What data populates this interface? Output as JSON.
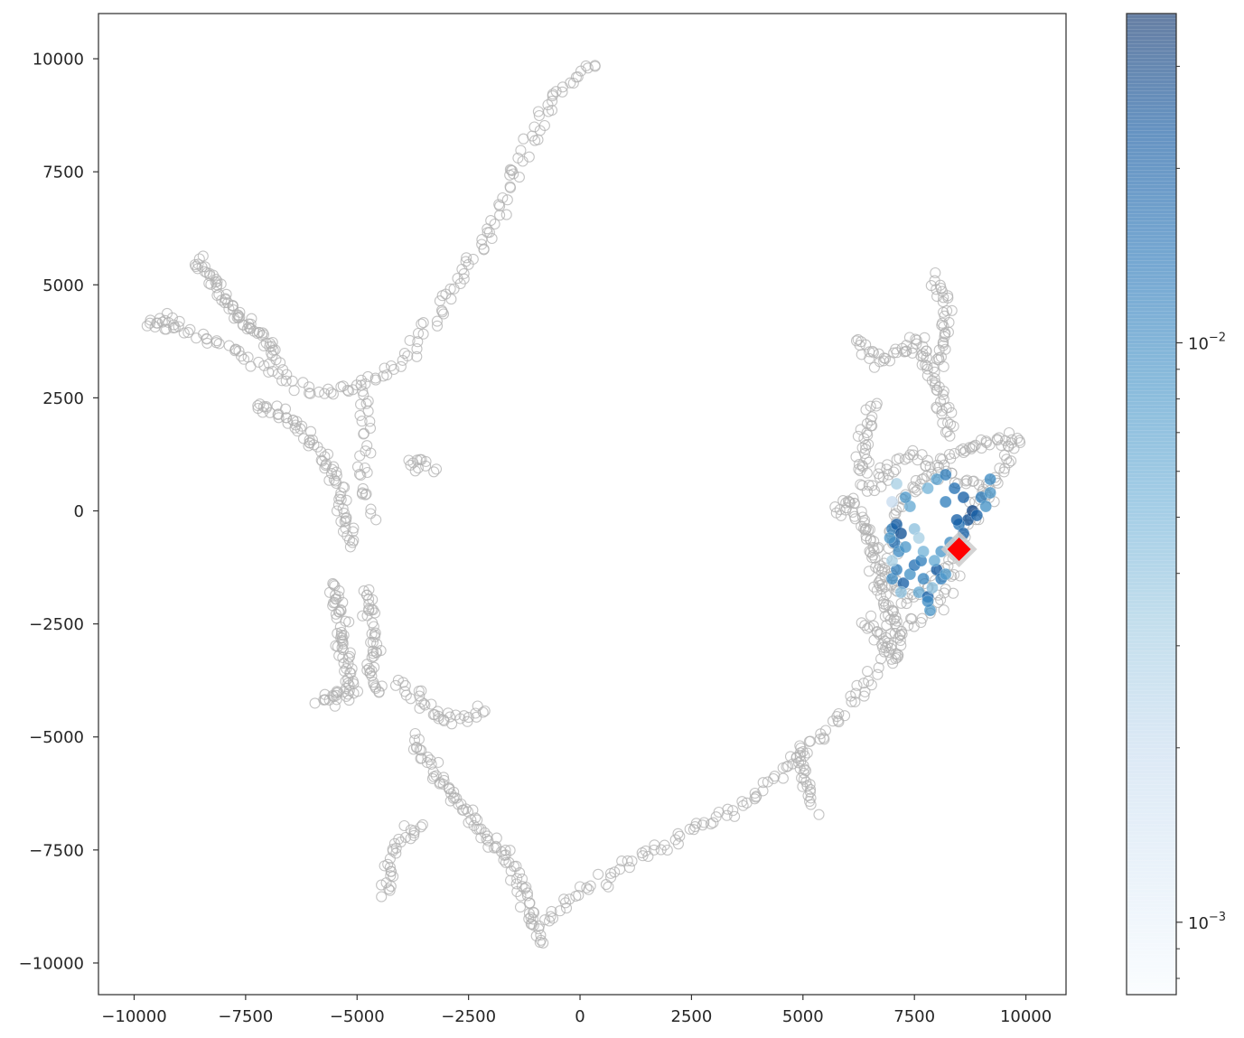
{
  "chart_data": {
    "type": "scatter",
    "title": "",
    "xlabel": "",
    "ylabel": "",
    "xlim": [
      -10800,
      10900
    ],
    "ylim": [
      -10700,
      11000
    ],
    "xticks": [
      -10000,
      -7500,
      -5000,
      -2500,
      0,
      2500,
      5000,
      7500,
      10000
    ],
    "xtick_labels": [
      "−10000",
      "−7500",
      "−5000",
      "−2500",
      "0",
      "2500",
      "5000",
      "7500",
      "10000"
    ],
    "yticks": [
      10000,
      7500,
      5000,
      2500,
      0,
      -2500,
      -5000,
      -7500,
      -10000
    ],
    "ytick_labels": [
      "10000",
      "7500",
      "5000",
      "2500",
      "0",
      "−2500",
      "−5000",
      "−7500",
      "−10000"
    ],
    "grid": false,
    "background_points": {
      "style": "hollow-circle",
      "color": "#b0b0b0",
      "branches": [
        {
          "path": [
            [
              -9600,
              4150
            ],
            [
              -8900,
              3950
            ],
            [
              -8200,
              3700
            ],
            [
              -7600,
              3500
            ],
            [
              -7100,
              3200
            ],
            [
              -6600,
              2900
            ],
            [
              -6000,
              2700
            ],
            [
              -5500,
              2600
            ],
            [
              -5000,
              2700
            ],
            [
              -4400,
              3000
            ],
            [
              -3800,
              3600
            ],
            [
              -3200,
              4300
            ],
            [
              -2800,
              5000
            ],
            [
              -2200,
              5900
            ],
            [
              -1800,
              6600
            ],
            [
              -1600,
              7300
            ],
            [
              -1300,
              7900
            ],
            [
              -900,
              8500
            ],
            [
              -600,
              9100
            ],
            [
              -300,
              9400
            ],
            [
              400,
              10000
            ]
          ],
          "n": 150
        },
        {
          "path": [
            [
              -8600,
              5600
            ],
            [
              -8300,
              5200
            ],
            [
              -8000,
              4700
            ],
            [
              -7700,
              4400
            ],
            [
              -7300,
              4000
            ],
            [
              -7000,
              3700
            ],
            [
              -6800,
              3300
            ]
          ],
          "n": 70
        },
        {
          "path": [
            [
              -7300,
              2400
            ],
            [
              -6700,
              2100
            ],
            [
              -6200,
              1800
            ],
            [
              -5800,
              1300
            ],
            [
              -5500,
              800
            ],
            [
              -5400,
              300
            ],
            [
              -5300,
              -100
            ],
            [
              -5200,
              -500
            ],
            [
              -5100,
              -800
            ]
          ],
          "n": 75
        },
        {
          "path": [
            [
              -4900,
              2900
            ],
            [
              -4800,
              2200
            ],
            [
              -4800,
              1500
            ],
            [
              -4900,
              900
            ],
            [
              -4800,
              300
            ],
            [
              -4700,
              -200
            ]
          ],
          "n": 30
        },
        {
          "path": [
            [
              -5500,
              -1600
            ],
            [
              -5400,
              -2400
            ],
            [
              -5300,
              -3100
            ],
            [
              -5200,
              -3600
            ],
            [
              -5100,
              -4000
            ],
            [
              -5900,
              -4200
            ]
          ],
          "n": 75
        },
        {
          "path": [
            [
              -4800,
              -1700
            ],
            [
              -4700,
              -2500
            ],
            [
              -4600,
              -3000
            ],
            [
              -4700,
              -3500
            ],
            [
              -4500,
              -4100
            ]
          ],
          "n": 45
        },
        {
          "path": [
            [
              -4100,
              -3700
            ],
            [
              -3600,
              -4200
            ],
            [
              -3100,
              -4600
            ],
            [
              -2600,
              -4600
            ],
            [
              -2100,
              -4400
            ]
          ],
          "n": 35
        },
        {
          "path": [
            [
              -3800,
              -5000
            ],
            [
              -3500,
              -5400
            ],
            [
              -3200,
              -5900
            ],
            [
              -2900,
              -6200
            ],
            [
              -2600,
              -6600
            ],
            [
              -2300,
              -7000
            ],
            [
              -1900,
              -7400
            ],
            [
              -1500,
              -7900
            ],
            [
              -1300,
              -8400
            ],
            [
              -1100,
              -9000
            ],
            [
              -900,
              -9600
            ]
          ],
          "n": 100
        },
        {
          "path": [
            [
              -3600,
              -6900
            ],
            [
              -4000,
              -7300
            ],
            [
              -4200,
              -7800
            ],
            [
              -4400,
              -8500
            ]
          ],
          "n": 30
        },
        {
          "path": [
            [
              -800,
              -9200
            ],
            [
              -500,
              -8800
            ],
            [
              -100,
              -8500
            ],
            [
              500,
              -8200
            ],
            [
              1200,
              -7700
            ],
            [
              2000,
              -7300
            ],
            [
              2700,
              -7000
            ],
            [
              3300,
              -6700
            ],
            [
              3900,
              -6300
            ],
            [
              4400,
              -5900
            ],
            [
              4900,
              -5400
            ],
            [
              5500,
              -4900
            ],
            [
              6000,
              -4400
            ],
            [
              6500,
              -3700
            ],
            [
              7000,
              -3100
            ],
            [
              7500,
              -2500
            ],
            [
              8000,
              -2100
            ],
            [
              8500,
              -1400
            ]
          ],
          "n": 130
        },
        {
          "path": [
            [
              4900,
              -5200
            ],
            [
              5000,
              -5700
            ],
            [
              5100,
              -6200
            ],
            [
              5200,
              -6600
            ]
          ],
          "n": 25
        },
        {
          "path": [
            [
              5700,
              0
            ],
            [
              6100,
              200
            ],
            [
              6400,
              -300
            ],
            [
              6600,
              -900
            ],
            [
              6700,
              -1600
            ],
            [
              6900,
              -2200
            ],
            [
              7200,
              -2800
            ]
          ],
          "n": 80
        },
        {
          "path": [
            [
              6400,
              -2400
            ],
            [
              6800,
              -2900
            ],
            [
              7200,
              -3300
            ]
          ],
          "n": 25
        },
        {
          "path": [
            [
              6200,
              3800
            ],
            [
              6700,
              3300
            ],
            [
              7200,
              3500
            ],
            [
              7600,
              3800
            ],
            [
              7900,
              3000
            ],
            [
              8200,
              2300
            ],
            [
              8300,
              1600
            ]
          ],
          "n": 70
        },
        {
          "path": [
            [
              8000,
              5300
            ],
            [
              8200,
              4600
            ],
            [
              8200,
              3700
            ],
            [
              8000,
              3100
            ]
          ],
          "n": 35
        },
        {
          "path": [
            [
              6600,
              2400
            ],
            [
              6400,
              1700
            ],
            [
              6300,
              1000
            ],
            [
              6500,
              500
            ],
            [
              6900,
              900
            ],
            [
              7500,
              1200
            ],
            [
              8000,
              1000
            ],
            [
              8600,
              1300
            ],
            [
              9200,
              1500
            ],
            [
              9800,
              1600
            ]
          ],
          "n": 90
        },
        {
          "path": [
            [
              9800,
              1600
            ],
            [
              9600,
              1100
            ],
            [
              9300,
              700
            ],
            [
              9000,
              300
            ],
            [
              8800,
              -200
            ],
            [
              8500,
              -700
            ],
            [
              8200,
              -1200
            ],
            [
              7800,
              -1700
            ],
            [
              7300,
              -2000
            ],
            [
              7000,
              -1700
            ],
            [
              6900,
              -1100
            ],
            [
              7000,
              -400
            ],
            [
              7200,
              200
            ],
            [
              7500,
              600
            ],
            [
              7900,
              800
            ],
            [
              8400,
              700
            ],
            [
              8900,
              500
            ],
            [
              9300,
              200
            ]
          ],
          "n": 120
        },
        {
          "path": [
            [
              -9700,
              4100
            ],
            [
              -9300,
              4200
            ],
            [
              -9000,
              4100
            ]
          ],
          "n": 12
        },
        {
          "path": [
            [
              -3900,
              900
            ],
            [
              -3600,
              1100
            ],
            [
              -3300,
              800
            ]
          ],
          "n": 12
        }
      ]
    },
    "colored_points": {
      "colormap": "Blues",
      "scale": "log",
      "vmin": 0.00075,
      "vmax": 0.037,
      "points": [
        [
          7000,
          -400,
          0.012
        ],
        [
          7050,
          -700,
          0.015
        ],
        [
          7100,
          -300,
          0.02
        ],
        [
          7150,
          -900,
          0.01
        ],
        [
          7200,
          -500,
          0.025
        ],
        [
          6950,
          -600,
          0.008
        ],
        [
          7000,
          -1500,
          0.01
        ],
        [
          7100,
          -1300,
          0.012
        ],
        [
          7250,
          -1600,
          0.02
        ],
        [
          7400,
          -1400,
          0.009
        ],
        [
          7500,
          -1200,
          0.015
        ],
        [
          7600,
          -1800,
          0.006
        ],
        [
          7700,
          -1500,
          0.011
        ],
        [
          7800,
          -1900,
          0.018
        ],
        [
          7900,
          -1700,
          0.004
        ],
        [
          8000,
          -1300,
          0.022
        ],
        [
          8100,
          -1500,
          0.013
        ],
        [
          8200,
          -1400,
          0.007
        ],
        [
          7850,
          -2200,
          0.008
        ],
        [
          7800,
          -2000,
          0.01
        ],
        [
          7300,
          -800,
          0.008
        ],
        [
          7500,
          -400,
          0.004
        ],
        [
          7400,
          100,
          0.006
        ],
        [
          7300,
          300,
          0.008
        ],
        [
          7100,
          600,
          0.003
        ],
        [
          7000,
          200,
          0.002
        ],
        [
          7800,
          500,
          0.005
        ],
        [
          8000,
          700,
          0.007
        ],
        [
          8200,
          800,
          0.012
        ],
        [
          8400,
          500,
          0.015
        ],
        [
          8600,
          300,
          0.02
        ],
        [
          8700,
          -200,
          0.025
        ],
        [
          8800,
          0,
          0.03
        ],
        [
          8900,
          -100,
          0.018
        ],
        [
          9000,
          300,
          0.012
        ],
        [
          9100,
          100,
          0.009
        ],
        [
          9200,
          400,
          0.008
        ],
        [
          9200,
          700,
          0.01
        ],
        [
          8500,
          -300,
          0.014
        ],
        [
          8300,
          -700,
          0.01
        ],
        [
          8100,
          -900,
          0.008
        ],
        [
          7950,
          -1100,
          0.006
        ],
        [
          7650,
          -1100,
          0.012
        ],
        [
          7200,
          -1800,
          0.004
        ],
        [
          7000,
          -1100,
          0.003
        ],
        [
          8600,
          -500,
          0.018
        ],
        [
          8450,
          -200,
          0.02
        ],
        [
          8200,
          200,
          0.012
        ],
        [
          7600,
          -600,
          0.003
        ],
        [
          7700,
          -900,
          0.005
        ]
      ]
    },
    "highlight_marker": {
      "x": 8500,
      "y": -850,
      "shape": "diamond",
      "color": "#ff0000"
    },
    "colorbar": {
      "colormap": "Blues",
      "scale": "log",
      "vmin": 0.00075,
      "vmax": 0.037,
      "major_ticks": [
        0.001,
        0.01
      ],
      "major_tick_labels": [
        {
          "base": "10",
          "exp": "−3"
        },
        {
          "base": "10",
          "exp": "−2"
        }
      ],
      "minor_ticks": [
        0.0008,
        0.0009,
        0.002,
        0.003,
        0.004,
        0.005,
        0.006,
        0.007,
        0.008,
        0.009,
        0.02,
        0.03
      ]
    }
  }
}
